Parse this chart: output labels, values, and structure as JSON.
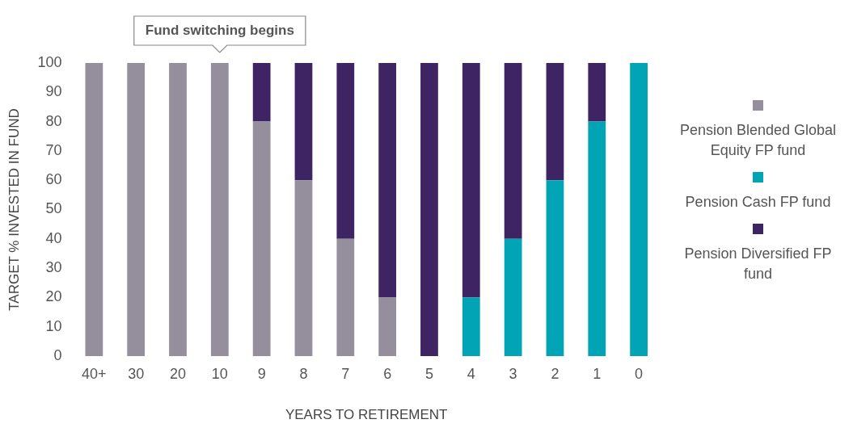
{
  "chart_data": {
    "type": "bar",
    "stacked": true,
    "xlabel": "YEARS TO RETIREMENT",
    "ylabel": "TARGET % INVESTED IN FUND",
    "categories": [
      "40+",
      "30",
      "20",
      "10",
      "9",
      "8",
      "7",
      "6",
      "5",
      "4",
      "3",
      "2",
      "1",
      "0"
    ],
    "series": [
      {
        "name": "Pension Blended Global Equity FP fund",
        "color": "#958f9d",
        "values": [
          100,
          100,
          100,
          100,
          80,
          60,
          40,
          20,
          0,
          0,
          0,
          0,
          0,
          0
        ]
      },
      {
        "name": "Pension Cash FP fund",
        "color": "#00a4b4",
        "values": [
          0,
          0,
          0,
          0,
          0,
          0,
          0,
          0,
          0,
          20,
          40,
          60,
          80,
          100
        ]
      },
      {
        "name": "Pension Diversified FP fund",
        "color": "#3e2462",
        "values": [
          0,
          0,
          0,
          0,
          20,
          40,
          60,
          80,
          100,
          80,
          60,
          40,
          20,
          0
        ]
      }
    ],
    "ylim": [
      0,
      100
    ],
    "yticks": [
      0,
      10,
      20,
      30,
      40,
      50,
      60,
      70,
      80,
      90,
      100
    ],
    "grid": false,
    "legend": "right",
    "annotations": [
      {
        "text": "Fund switching begins",
        "x": "10",
        "y": 100
      }
    ]
  }
}
